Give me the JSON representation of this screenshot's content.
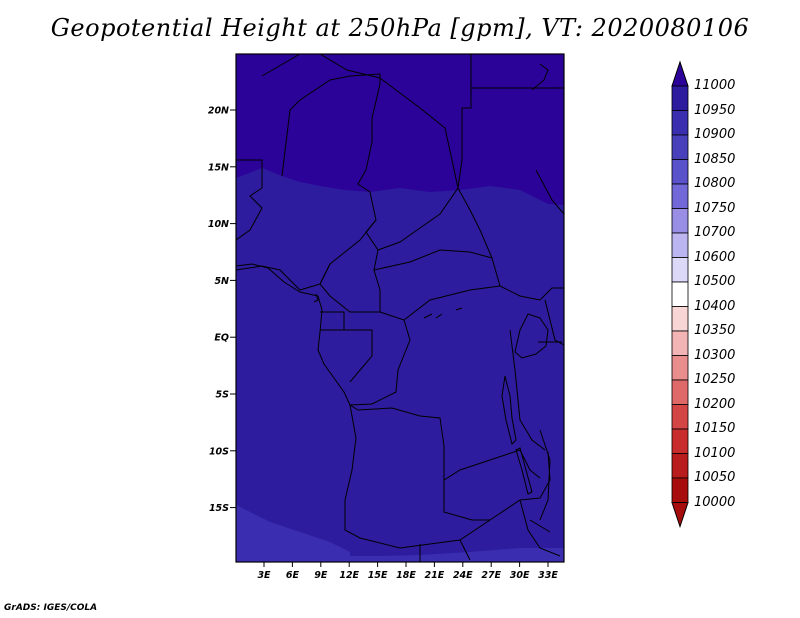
{
  "title": "Geopotential Height at 250hPa [gpm], VT: 2020080106",
  "credit": "GrADS: IGES/COLA",
  "map": {
    "lat_ticks": [
      "20N",
      "15N",
      "10N",
      "5N",
      "EQ",
      "5S",
      "10S",
      "15S"
    ],
    "lon_ticks": [
      "3E",
      "6E",
      "9E",
      "12E",
      "15E",
      "18E",
      "21E",
      "24E",
      "27E",
      "30E",
      "33E"
    ],
    "field_colors": {
      "north_band": "#2c0399",
      "middle": "#2d1c9e",
      "south_band": "#3b2db0"
    }
  },
  "colorbar": {
    "levels": [
      "11000",
      "10950",
      "10900",
      "10850",
      "10800",
      "10750",
      "10700",
      "10600",
      "10500",
      "10400",
      "10350",
      "10300",
      "10250",
      "10200",
      "10150",
      "10100",
      "10050",
      "10000"
    ],
    "colors": [
      "#2c0399",
      "#2d1c9e",
      "#3a2fae",
      "#4840bb",
      "#5a52ca",
      "#7368d8",
      "#988ee6",
      "#bcb6f0",
      "#dcd9f8",
      "#ffffff",
      "#f9d6d6",
      "#f2b4b4",
      "#e98d8d",
      "#df6868",
      "#d44646",
      "#c82c2c",
      "#b91c1c",
      "#a80d0d"
    ]
  }
}
